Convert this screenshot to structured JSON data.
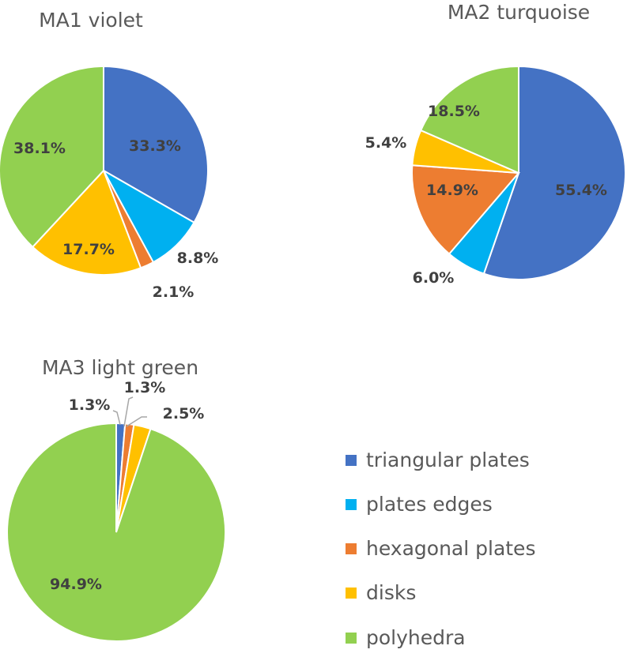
{
  "colors": {
    "triangular plates": "#4472C4",
    "plates edges": "#00B0F0",
    "hexagonal plates": "#ED7D31",
    "disks": "#FFC000",
    "polyhedra": "#92D050"
  },
  "legend": {
    "placement": "bottom-right",
    "items": [
      "triangular plates",
      "plates edges",
      "hexagonal plates",
      "disks",
      "polyhedra"
    ]
  },
  "chart_data": [
    {
      "type": "pie",
      "title": "MA1 violet",
      "categories": [
        "triangular plates",
        "plates edges",
        "hexagonal plates",
        "disks",
        "polyhedra"
      ],
      "values": [
        33.3,
        8.8,
        2.1,
        17.7,
        38.1
      ],
      "labels": [
        "33.3%",
        "8.8%",
        "2.1%",
        "17.7%",
        "38.1%"
      ]
    },
    {
      "type": "pie",
      "title": "MA2 turquoise",
      "categories": [
        "triangular plates",
        "plates edges",
        "hexagonal plates",
        "disks",
        "polyhedra"
      ],
      "values": [
        55.4,
        6.0,
        14.9,
        5.4,
        18.5
      ],
      "labels": [
        "55.4%",
        "6.0%",
        "14.9%",
        "5.4%",
        "18.5%"
      ]
    },
    {
      "type": "pie",
      "title": "MA3 light green",
      "categories": [
        "triangular plates",
        "plates edges",
        "hexagonal plates",
        "disks",
        "polyhedra"
      ],
      "values": [
        1.3,
        0,
        1.3,
        2.5,
        94.9
      ],
      "labels": [
        "1.3%",
        "",
        "1.3%",
        "2.5%",
        "94.9%"
      ]
    }
  ]
}
